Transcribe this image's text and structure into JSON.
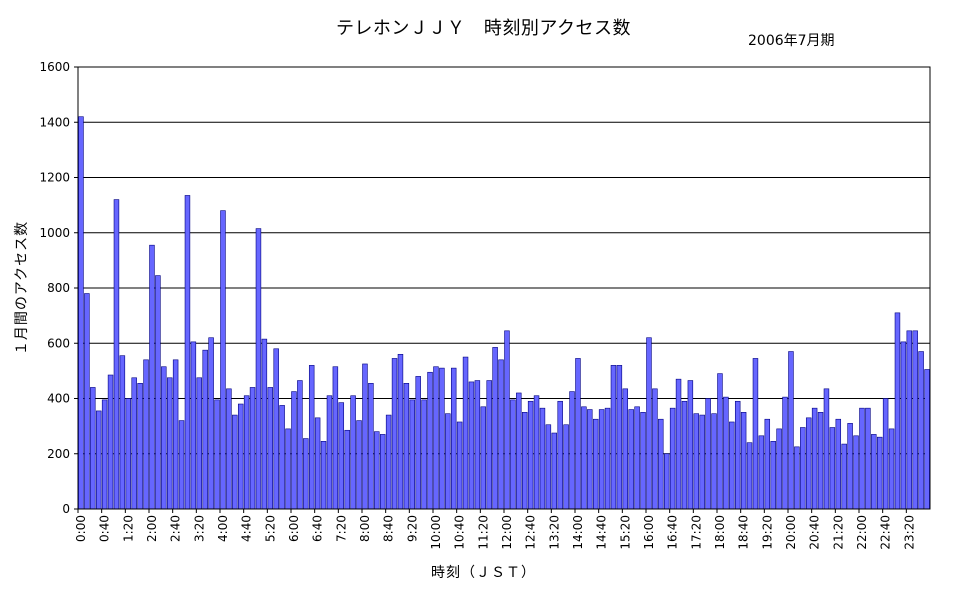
{
  "chart_data": {
    "type": "bar",
    "title": "テレホンＪＪＹ　時刻別アクセス数",
    "subtitle": "2006年7月期",
    "xlabel": "時刻（ＪＳＴ）",
    "ylabel": "１月間のアクセス数",
    "ylim": [
      0,
      1600
    ],
    "yticks": [
      0,
      200,
      400,
      600,
      800,
      1000,
      1200,
      1400,
      1600
    ],
    "grid": true,
    "legend": "none",
    "bar_color": "#6666ff",
    "bar_edge": "#000080",
    "x_tick_labels": [
      "0:00",
      "0:40",
      "1:20",
      "2:00",
      "2:40",
      "3:20",
      "4:00",
      "4:40",
      "5:20",
      "6:00",
      "6:40",
      "7:20",
      "8:00",
      "8:40",
      "9:20",
      "10:00",
      "10:40",
      "11:20",
      "12:00",
      "12:40",
      "13:20",
      "14:00",
      "14:40",
      "15:20",
      "16:00",
      "16:40",
      "17:20",
      "18:00",
      "18:40",
      "19:20",
      "20:00",
      "20:40",
      "21:20",
      "22:00",
      "22:40",
      "23:20"
    ],
    "x_tick_every": 4,
    "values": [
      1420,
      780,
      440,
      355,
      395,
      485,
      1120,
      555,
      400,
      475,
      455,
      540,
      955,
      845,
      515,
      475,
      540,
      320,
      1135,
      605,
      475,
      575,
      620,
      395,
      1080,
      435,
      340,
      380,
      410,
      440,
      1015,
      615,
      440,
      580,
      375,
      290,
      425,
      465,
      255,
      520,
      330,
      245,
      410,
      515,
      385,
      285,
      410,
      320,
      525,
      455,
      280,
      270,
      340,
      545,
      560,
      455,
      395,
      480,
      395,
      495,
      515,
      510,
      345,
      510,
      315,
      550,
      460,
      465,
      370,
      465,
      585,
      540,
      645,
      395,
      420,
      350,
      390,
      410,
      365,
      305,
      275,
      390,
      305,
      425,
      545,
      370,
      360,
      325,
      360,
      365,
      520,
      520,
      435,
      360,
      370,
      350,
      620,
      435,
      325,
      200,
      365,
      470,
      390,
      465,
      345,
      340,
      400,
      345,
      490,
      405,
      315,
      390,
      350,
      240,
      545,
      265,
      325,
      245,
      290,
      405,
      570,
      225,
      295,
      330,
      365,
      350,
      435,
      295,
      325,
      235,
      310,
      265,
      365,
      365,
      270,
      260,
      400,
      290,
      710,
      605,
      645,
      645,
      570,
      505
    ]
  }
}
